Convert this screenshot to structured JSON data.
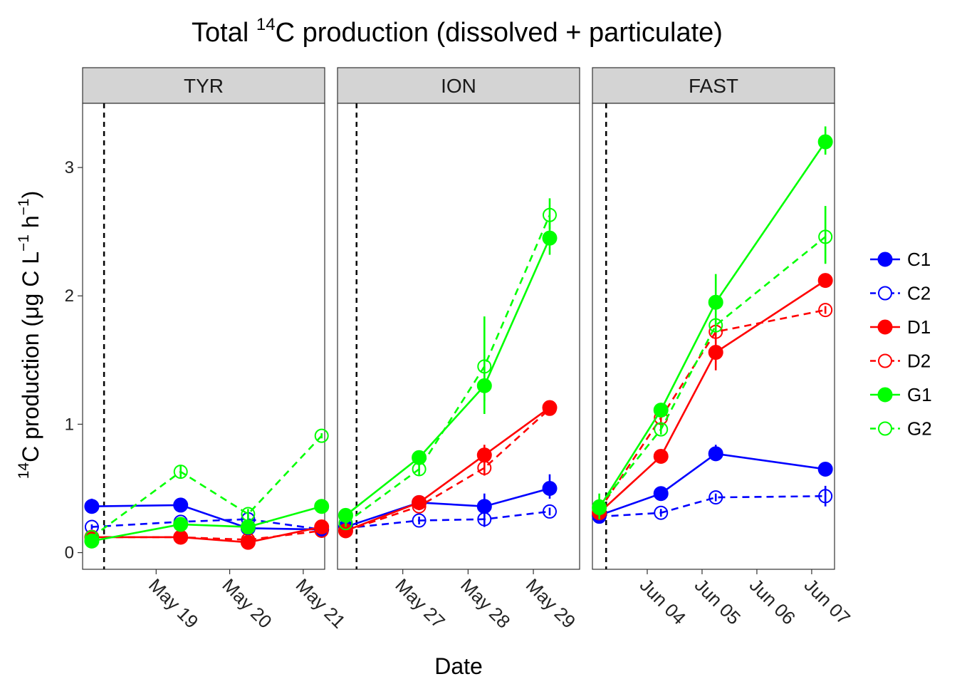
{
  "chart_data": {
    "type": "line",
    "title": {
      "pre": "Total ",
      "sup": "14",
      "post": "C production (dissolved + particulate)"
    },
    "xlabel": "Date",
    "ylabel": {
      "pre": "",
      "sup1": "14",
      "mid": "C production (μg C L",
      "sup2": "−1",
      "mid2": " h",
      "sup3": "−1",
      "post": ")"
    },
    "ylim": [
      -0.13,
      3.5
    ],
    "yticks": [
      0,
      1,
      2,
      3
    ],
    "grid": false,
    "legend_position": "right",
    "legend": [
      {
        "name": "C1",
        "color": "#0000ff",
        "linetype": "solid",
        "filled": true
      },
      {
        "name": "C2",
        "color": "#0000ff",
        "linetype": "dashed",
        "filled": false
      },
      {
        "name": "D1",
        "color": "#ff0000",
        "linetype": "solid",
        "filled": true
      },
      {
        "name": "D2",
        "color": "#ff0000",
        "linetype": "dashed",
        "filled": false
      },
      {
        "name": "G1",
        "color": "#00ff00",
        "linetype": "solid",
        "filled": true
      },
      {
        "name": "G2",
        "color": "#00ff00",
        "linetype": "dashed",
        "filled": false
      }
    ],
    "panels": [
      {
        "label": "TYR",
        "xlim": [
          "2015-05-18 00:00",
          "2015-05-21 07:00"
        ],
        "xticks": [
          {
            "date": "2015-05-19",
            "label": "May 19"
          },
          {
            "date": "2015-05-20",
            "label": "May 20"
          },
          {
            "date": "2015-05-21",
            "label": "May 21"
          }
        ],
        "vline": "2015-05-18 07:00",
        "series": [
          {
            "name": "C1",
            "points": [
              {
                "x": "2015-05-18 03:00",
                "y": 0.36,
                "lo": 0.32,
                "hi": 0.42
              },
              {
                "x": "2015-05-19 08:00",
                "y": 0.37,
                "lo": 0.35,
                "hi": 0.39
              },
              {
                "x": "2015-05-20 06:00",
                "y": 0.19,
                "lo": 0.17,
                "hi": 0.21
              },
              {
                "x": "2015-05-21 06:00",
                "y": 0.18,
                "lo": 0.16,
                "hi": 0.2
              }
            ]
          },
          {
            "name": "C2",
            "points": [
              {
                "x": "2015-05-18 03:00",
                "y": 0.2,
                "lo": 0.18,
                "hi": 0.22
              },
              {
                "x": "2015-05-19 08:00",
                "y": 0.24,
                "lo": 0.21,
                "hi": 0.27
              },
              {
                "x": "2015-05-20 06:00",
                "y": 0.26,
                "lo": 0.22,
                "hi": 0.3
              },
              {
                "x": "2015-05-21 06:00",
                "y": 0.18,
                "lo": 0.16,
                "hi": 0.2
              }
            ]
          },
          {
            "name": "D1",
            "points": [
              {
                "x": "2015-05-18 03:00",
                "y": 0.12,
                "lo": 0.1,
                "hi": 0.14
              },
              {
                "x": "2015-05-19 08:00",
                "y": 0.12,
                "lo": 0.1,
                "hi": 0.14
              },
              {
                "x": "2015-05-20 06:00",
                "y": 0.08,
                "lo": 0.06,
                "hi": 0.1
              },
              {
                "x": "2015-05-21 06:00",
                "y": 0.2,
                "lo": 0.18,
                "hi": 0.22
              }
            ]
          },
          {
            "name": "D2",
            "points": [
              {
                "x": "2015-05-18 03:00",
                "y": 0.12,
                "lo": 0.1,
                "hi": 0.14
              },
              {
                "x": "2015-05-19 08:00",
                "y": 0.12,
                "lo": 0.1,
                "hi": 0.14
              },
              {
                "x": "2015-05-20 06:00",
                "y": 0.1,
                "lo": 0.08,
                "hi": 0.12
              },
              {
                "x": "2015-05-21 06:00",
                "y": 0.17,
                "lo": 0.15,
                "hi": 0.19
              }
            ]
          },
          {
            "name": "G1",
            "points": [
              {
                "x": "2015-05-18 03:00",
                "y": 0.09,
                "lo": 0.07,
                "hi": 0.11
              },
              {
                "x": "2015-05-19 08:00",
                "y": 0.22,
                "lo": 0.2,
                "hi": 0.24
              },
              {
                "x": "2015-05-20 06:00",
                "y": 0.2,
                "lo": 0.18,
                "hi": 0.22
              },
              {
                "x": "2015-05-21 06:00",
                "y": 0.36,
                "lo": 0.34,
                "hi": 0.38
              }
            ]
          },
          {
            "name": "G2",
            "points": [
              {
                "x": "2015-05-18 03:00",
                "y": 0.12,
                "lo": 0.1,
                "hi": 0.14
              },
              {
                "x": "2015-05-19 08:00",
                "y": 0.63,
                "lo": 0.58,
                "hi": 0.68
              },
              {
                "x": "2015-05-20 06:00",
                "y": 0.3,
                "lo": 0.26,
                "hi": 0.34
              },
              {
                "x": "2015-05-21 06:00",
                "y": 0.91,
                "lo": 0.89,
                "hi": 0.93
              }
            ]
          }
        ]
      },
      {
        "label": "ION",
        "xlim": [
          "2015-05-26 00:00",
          "2015-05-29 17:00"
        ],
        "xticks": [
          {
            "date": "2015-05-27",
            "label": "May 27"
          },
          {
            "date": "2015-05-28",
            "label": "May 28"
          },
          {
            "date": "2015-05-29",
            "label": "May 29"
          }
        ],
        "vline": "2015-05-26 07:00",
        "series": [
          {
            "name": "C1",
            "points": [
              {
                "x": "2015-05-26 03:00",
                "y": 0.2,
                "lo": 0.18,
                "hi": 0.22
              },
              {
                "x": "2015-05-27 06:00",
                "y": 0.39,
                "lo": 0.36,
                "hi": 0.42
              },
              {
                "x": "2015-05-28 06:00",
                "y": 0.36,
                "lo": 0.28,
                "hi": 0.46
              },
              {
                "x": "2015-05-29 06:00",
                "y": 0.5,
                "lo": 0.42,
                "hi": 0.61
              }
            ]
          },
          {
            "name": "C2",
            "points": [
              {
                "x": "2015-05-26 03:00",
                "y": 0.19,
                "lo": 0.17,
                "hi": 0.21
              },
              {
                "x": "2015-05-27 06:00",
                "y": 0.25,
                "lo": 0.22,
                "hi": 0.28
              },
              {
                "x": "2015-05-28 06:00",
                "y": 0.26,
                "lo": 0.2,
                "hi": 0.32
              },
              {
                "x": "2015-05-29 06:00",
                "y": 0.32,
                "lo": 0.29,
                "hi": 0.35
              }
            ]
          },
          {
            "name": "D1",
            "points": [
              {
                "x": "2015-05-26 03:00",
                "y": 0.17,
                "lo": 0.15,
                "hi": 0.19
              },
              {
                "x": "2015-05-27 06:00",
                "y": 0.39,
                "lo": 0.36,
                "hi": 0.42
              },
              {
                "x": "2015-05-28 06:00",
                "y": 0.76,
                "lo": 0.7,
                "hi": 0.84
              },
              {
                "x": "2015-05-29 06:00",
                "y": 1.13,
                "lo": 1.1,
                "hi": 1.16
              }
            ]
          },
          {
            "name": "D2",
            "points": [
              {
                "x": "2015-05-26 03:00",
                "y": 0.17,
                "lo": 0.15,
                "hi": 0.19
              },
              {
                "x": "2015-05-27 06:00",
                "y": 0.36,
                "lo": 0.33,
                "hi": 0.39
              },
              {
                "x": "2015-05-28 06:00",
                "y": 0.66,
                "lo": 0.6,
                "hi": 0.72
              },
              {
                "x": "2015-05-29 06:00",
                "y": 1.12,
                "lo": 1.08,
                "hi": 1.16
              }
            ]
          },
          {
            "name": "G1",
            "points": [
              {
                "x": "2015-05-26 03:00",
                "y": 0.29,
                "lo": 0.26,
                "hi": 0.32
              },
              {
                "x": "2015-05-27 06:00",
                "y": 0.74,
                "lo": 0.7,
                "hi": 0.78
              },
              {
                "x": "2015-05-28 06:00",
                "y": 1.3,
                "lo": 1.08,
                "hi": 1.45
              },
              {
                "x": "2015-05-29 06:00",
                "y": 2.45,
                "lo": 2.32,
                "hi": 2.58
              }
            ]
          },
          {
            "name": "G2",
            "points": [
              {
                "x": "2015-05-26 03:00",
                "y": 0.23,
                "lo": 0.2,
                "hi": 0.26
              },
              {
                "x": "2015-05-27 06:00",
                "y": 0.65,
                "lo": 0.6,
                "hi": 0.7
              },
              {
                "x": "2015-05-28 06:00",
                "y": 1.45,
                "lo": 1.18,
                "hi": 1.84
              },
              {
                "x": "2015-05-29 06:00",
                "y": 2.63,
                "lo": 2.52,
                "hi": 2.76
              }
            ]
          }
        ]
      },
      {
        "label": "FAST",
        "xlim": [
          "2015-06-03 00:00",
          "2015-06-07 10:00"
        ],
        "xticks": [
          {
            "date": "2015-06-04",
            "label": "Jun 04"
          },
          {
            "date": "2015-06-05",
            "label": "Jun 05"
          },
          {
            "date": "2015-06-06",
            "label": "Jun 06"
          },
          {
            "date": "2015-06-07",
            "label": "Jun 07"
          }
        ],
        "vline": "2015-06-03 06:00",
        "series": [
          {
            "name": "C1",
            "points": [
              {
                "x": "2015-06-03 03:00",
                "y": 0.29,
                "lo": 0.26,
                "hi": 0.32
              },
              {
                "x": "2015-06-04 06:00",
                "y": 0.46,
                "lo": 0.43,
                "hi": 0.49
              },
              {
                "x": "2015-06-05 06:00",
                "y": 0.77,
                "lo": 0.72,
                "hi": 0.84
              },
              {
                "x": "2015-06-07 06:00",
                "y": 0.65,
                "lo": 0.62,
                "hi": 0.68
              }
            ]
          },
          {
            "name": "C2",
            "points": [
              {
                "x": "2015-06-03 03:00",
                "y": 0.28,
                "lo": 0.25,
                "hi": 0.31
              },
              {
                "x": "2015-06-04 06:00",
                "y": 0.31,
                "lo": 0.28,
                "hi": 0.34
              },
              {
                "x": "2015-06-05 06:00",
                "y": 0.43,
                "lo": 0.4,
                "hi": 0.46
              },
              {
                "x": "2015-06-07 06:00",
                "y": 0.44,
                "lo": 0.36,
                "hi": 0.52
              }
            ]
          },
          {
            "name": "D1",
            "points": [
              {
                "x": "2015-06-03 03:00",
                "y": 0.31,
                "lo": 0.28,
                "hi": 0.34
              },
              {
                "x": "2015-06-04 06:00",
                "y": 0.75,
                "lo": 0.72,
                "hi": 0.78
              },
              {
                "x": "2015-06-05 06:00",
                "y": 1.56,
                "lo": 1.42,
                "hi": 1.7
              },
              {
                "x": "2015-06-07 06:00",
                "y": 2.12,
                "lo": 2.08,
                "hi": 2.16
              }
            ]
          },
          {
            "name": "D2",
            "points": [
              {
                "x": "2015-06-03 03:00",
                "y": 0.33,
                "lo": 0.3,
                "hi": 0.36
              },
              {
                "x": "2015-06-04 06:00",
                "y": 1.05,
                "lo": 1.01,
                "hi": 1.09
              },
              {
                "x": "2015-06-05 06:00",
                "y": 1.72,
                "lo": 1.66,
                "hi": 1.78
              },
              {
                "x": "2015-06-07 06:00",
                "y": 1.89,
                "lo": 1.86,
                "hi": 1.92
              }
            ]
          },
          {
            "name": "G1",
            "points": [
              {
                "x": "2015-06-03 03:00",
                "y": 0.35,
                "lo": 0.31,
                "hi": 0.39
              },
              {
                "x": "2015-06-04 06:00",
                "y": 1.11,
                "lo": 1.07,
                "hi": 1.15
              },
              {
                "x": "2015-06-05 06:00",
                "y": 1.95,
                "lo": 1.76,
                "hi": 2.17
              },
              {
                "x": "2015-06-07 06:00",
                "y": 3.2,
                "lo": 3.1,
                "hi": 3.32
              }
            ]
          },
          {
            "name": "G2",
            "points": [
              {
                "x": "2015-06-03 03:00",
                "y": 0.36,
                "lo": 0.26,
                "hi": 0.46
              },
              {
                "x": "2015-06-04 06:00",
                "y": 0.96,
                "lo": 0.92,
                "hi": 1.0
              },
              {
                "x": "2015-06-05 06:00",
                "y": 1.77,
                "lo": 1.72,
                "hi": 1.82
              },
              {
                "x": "2015-06-07 06:00",
                "y": 2.46,
                "lo": 2.25,
                "hi": 2.7
              }
            ]
          }
        ]
      }
    ]
  }
}
